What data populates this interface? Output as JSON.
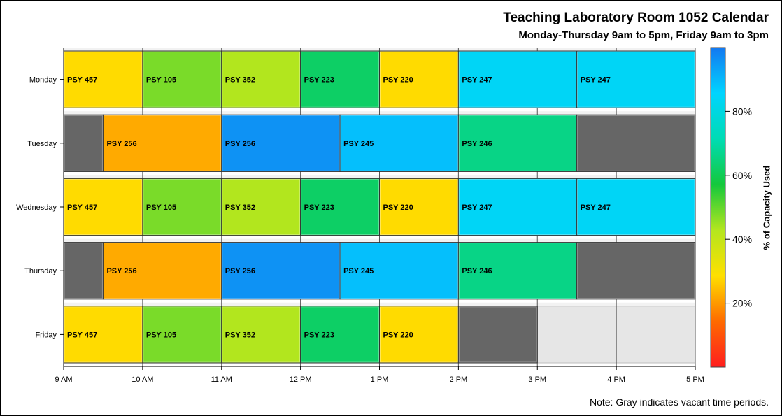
{
  "title": "Teaching Laboratory Room 1052 Calendar",
  "subtitle": "Monday-Thursday 9am to 5pm, Friday 9am to 3pm",
  "note": "Note: Gray indicates vacant time periods.",
  "colorbar_label": "% of Capacity Used",
  "chart_data": {
    "type": "gantt",
    "x_tick_labels": [
      "9 AM",
      "10 AM",
      "11 AM",
      "12 PM",
      "1 PM",
      "2 PM",
      "3 PM",
      "4 PM",
      "5 PM"
    ],
    "x_range_hours": [
      9,
      17
    ],
    "days": [
      {
        "name": "Monday",
        "bookings": [
          {
            "label": "PSY 457",
            "start": 9,
            "end": 10,
            "pct": 28
          },
          {
            "label": "PSY 105",
            "start": 10,
            "end": 11,
            "pct": 48
          },
          {
            "label": "PSY 352",
            "start": 11,
            "end": 12,
            "pct": 43
          },
          {
            "label": "PSY 223",
            "start": 12,
            "end": 13,
            "pct": 62
          },
          {
            "label": "PSY 220",
            "start": 13,
            "end": 14,
            "pct": 28
          },
          {
            "label": "PSY 247",
            "start": 14,
            "end": 15.5,
            "pct": 84
          },
          {
            "label": "PSY 247",
            "start": 15.5,
            "end": 17,
            "pct": 84
          }
        ]
      },
      {
        "name": "Tuesday",
        "bookings": [
          {
            "label": "",
            "start": 9,
            "end": 9.5,
            "pct": null
          },
          {
            "label": "PSY 256",
            "start": 9.5,
            "end": 11,
            "pct": 22
          },
          {
            "label": "PSY 256",
            "start": 11,
            "end": 12.5,
            "pct": 96
          },
          {
            "label": "PSY 245",
            "start": 12.5,
            "end": 14,
            "pct": 89
          },
          {
            "label": "PSY 246",
            "start": 14,
            "end": 15.5,
            "pct": 66
          },
          {
            "label": "",
            "start": 15.5,
            "end": 17,
            "pct": null
          }
        ]
      },
      {
        "name": "Wednesday",
        "bookings": [
          {
            "label": "PSY 457",
            "start": 9,
            "end": 10,
            "pct": 28
          },
          {
            "label": "PSY 105",
            "start": 10,
            "end": 11,
            "pct": 48
          },
          {
            "label": "PSY 352",
            "start": 11,
            "end": 12,
            "pct": 43
          },
          {
            "label": "PSY 223",
            "start": 12,
            "end": 13,
            "pct": 62
          },
          {
            "label": "PSY 220",
            "start": 13,
            "end": 14,
            "pct": 28
          },
          {
            "label": "PSY 247",
            "start": 14,
            "end": 15.5,
            "pct": 84
          },
          {
            "label": "PSY 247",
            "start": 15.5,
            "end": 17,
            "pct": 84
          }
        ]
      },
      {
        "name": "Thursday",
        "bookings": [
          {
            "label": "",
            "start": 9,
            "end": 9.5,
            "pct": null
          },
          {
            "label": "PSY 256",
            "start": 9.5,
            "end": 11,
            "pct": 22
          },
          {
            "label": "PSY 256",
            "start": 11,
            "end": 12.5,
            "pct": 96
          },
          {
            "label": "PSY 245",
            "start": 12.5,
            "end": 14,
            "pct": 89
          },
          {
            "label": "PSY 246",
            "start": 14,
            "end": 15.5,
            "pct": 66
          },
          {
            "label": "",
            "start": 15.5,
            "end": 17,
            "pct": null
          }
        ]
      },
      {
        "name": "Friday",
        "bookings": [
          {
            "label": "PSY 457",
            "start": 9,
            "end": 10,
            "pct": 28
          },
          {
            "label": "PSY 105",
            "start": 10,
            "end": 11,
            "pct": 48
          },
          {
            "label": "PSY 352",
            "start": 11,
            "end": 12,
            "pct": 43
          },
          {
            "label": "PSY 223",
            "start": 12,
            "end": 13,
            "pct": 62
          },
          {
            "label": "PSY 220",
            "start": 13,
            "end": 14,
            "pct": 28
          },
          {
            "label": "",
            "start": 14,
            "end": 15,
            "pct": null
          }
        ]
      }
    ],
    "colorbar": {
      "range": [
        0,
        100
      ],
      "tick_values": [
        20,
        40,
        60,
        80
      ],
      "tick_labels": [
        "20%",
        "40%",
        "60%",
        "80%"
      ],
      "gradient_colors": [
        "#ff1e1e",
        "#ff6a00",
        "#ffe000",
        "#b4e61e",
        "#14c83c",
        "#00dcb4",
        "#00d4ff",
        "#1478f0"
      ]
    },
    "vacant_color": "#666666",
    "closed_color": "#e6e6e6"
  }
}
